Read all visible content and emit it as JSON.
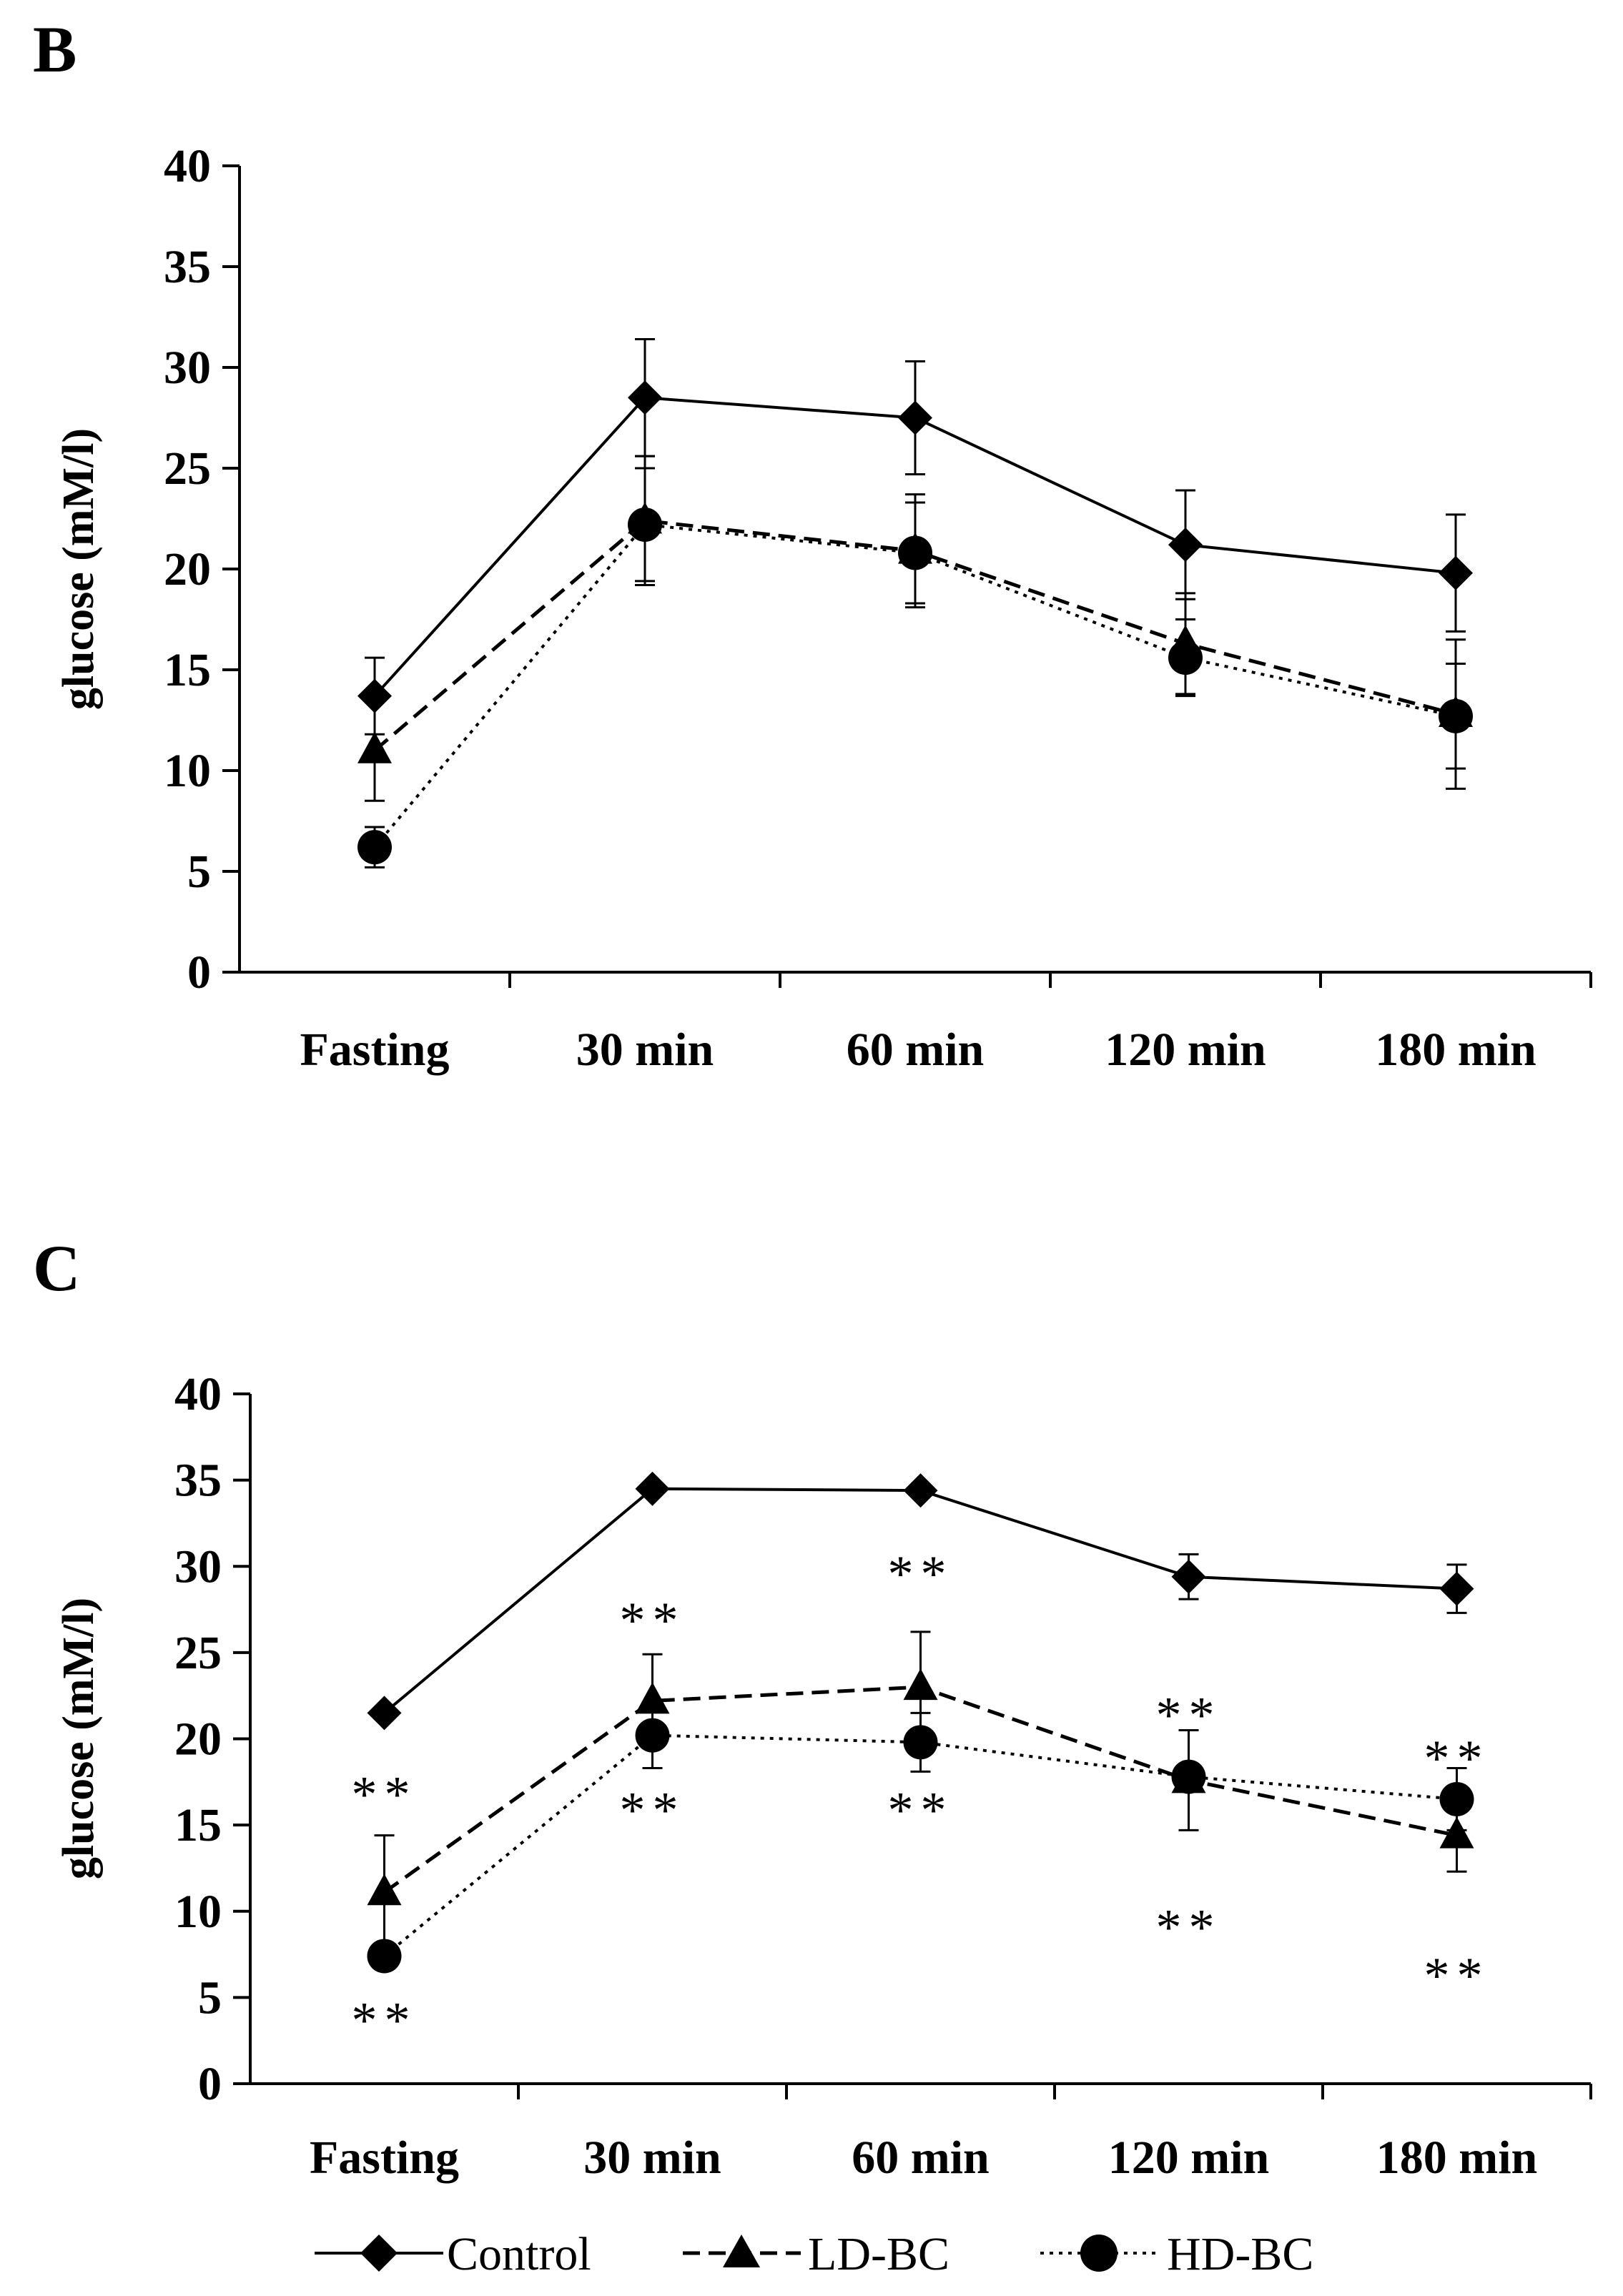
{
  "chart_data": [
    {
      "type": "line",
      "panel": "B",
      "title": "",
      "xlabel": "",
      "ylabel": "glucose (mM/l)",
      "ylim": [
        0,
        40
      ],
      "yticks": [
        "0",
        "5",
        "10",
        "15",
        "20",
        "25",
        "30",
        "35",
        "40"
      ],
      "categories": [
        "Fasting",
        "30 min",
        "60 min",
        "120 min",
        "180 min"
      ],
      "series": [
        {
          "name": "Control",
          "values": [
            13.7,
            28.5,
            27.5,
            21.2,
            19.8
          ],
          "errors": [
            1.9,
            2.9,
            2.8,
            2.7,
            2.9
          ]
        },
        {
          "name": "LD-BC",
          "values": [
            11.0,
            22.4,
            20.9,
            16.3,
            12.8
          ],
          "errors": [
            2.5,
            3.2,
            2.8,
            2.5,
            3.7
          ]
        },
        {
          "name": "HD-BC",
          "values": [
            6.2,
            22.2,
            20.8,
            15.6,
            12.7
          ],
          "errors": [
            1.0,
            2.8,
            2.5,
            1.9,
            2.6
          ]
        }
      ],
      "annotations": []
    },
    {
      "type": "line",
      "panel": "C",
      "title": "",
      "xlabel": "",
      "ylabel": "glucose (mM/l)",
      "ylim": [
        0,
        40
      ],
      "yticks": [
        "0",
        "5",
        "10",
        "15",
        "20",
        "25",
        "30",
        "35",
        "40"
      ],
      "categories": [
        "Fasting",
        "30 min",
        "60 min",
        "120 min",
        "180 min"
      ],
      "series": [
        {
          "name": "Control",
          "values": [
            21.5,
            34.5,
            34.4,
            29.4,
            28.7
          ],
          "errors": [
            0,
            0,
            0,
            1.3,
            1.4
          ]
        },
        {
          "name": "LD-BC",
          "values": [
            11.1,
            22.2,
            23.0,
            17.6,
            14.4
          ],
          "errors": [
            3.3,
            2.7,
            3.2,
            2.9,
            2.1
          ]
        },
        {
          "name": "HD-BC",
          "values": [
            7.4,
            20.2,
            19.8,
            17.8,
            16.5
          ],
          "errors": [
            0,
            1.9,
            1.7,
            0,
            1.8
          ]
        }
      ],
      "annotations": [
        {
          "text": "**",
          "category": 0,
          "y": 16.8
        },
        {
          "text": "**",
          "category": 0,
          "y": 3.7
        },
        {
          "text": "**",
          "category": 1,
          "y": 26.9
        },
        {
          "text": "**",
          "category": 1,
          "y": 15.9
        },
        {
          "text": "**",
          "category": 2,
          "y": 29.6
        },
        {
          "text": "**",
          "category": 2,
          "y": 15.9
        },
        {
          "text": "**",
          "category": 3,
          "y": 21.4
        },
        {
          "text": "**",
          "category": 3,
          "y": 9.1
        },
        {
          "text": "**",
          "category": 4,
          "y": 18.9
        },
        {
          "text": "**",
          "category": 4,
          "y": 6.3
        }
      ]
    }
  ],
  "legend": {
    "position": "bottom",
    "entries": [
      "Control",
      "LD-BC",
      "HD-BC"
    ]
  }
}
